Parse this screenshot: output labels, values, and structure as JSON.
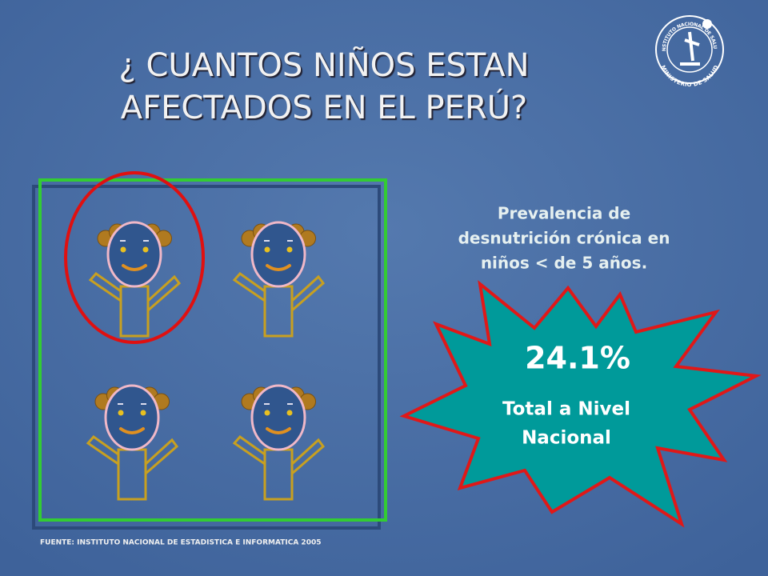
{
  "header": {
    "title_lines": [
      "¿ CUANTOS  NIÑOS ESTAN",
      "AFECTADOS EN EL PERÚ?"
    ],
    "logo": {
      "top_text": "INSTITUTO NACIONAL DE SALUD",
      "bottom_text": "MINISTERIO DE SALUD"
    }
  },
  "panel": {
    "subtitle_lines": [
      "Prevalencia de",
      "desnutrición crónica en",
      "niños < de 5 años."
    ],
    "burst": {
      "value": "24.1%",
      "caption_lines": [
        "Total a Nivel",
        "Nacional"
      ]
    }
  },
  "footer": {
    "source": "FUENTE: INSTITUTO NACIONAL DE ESTADISTICA E INFORMATICA 2005"
  }
}
